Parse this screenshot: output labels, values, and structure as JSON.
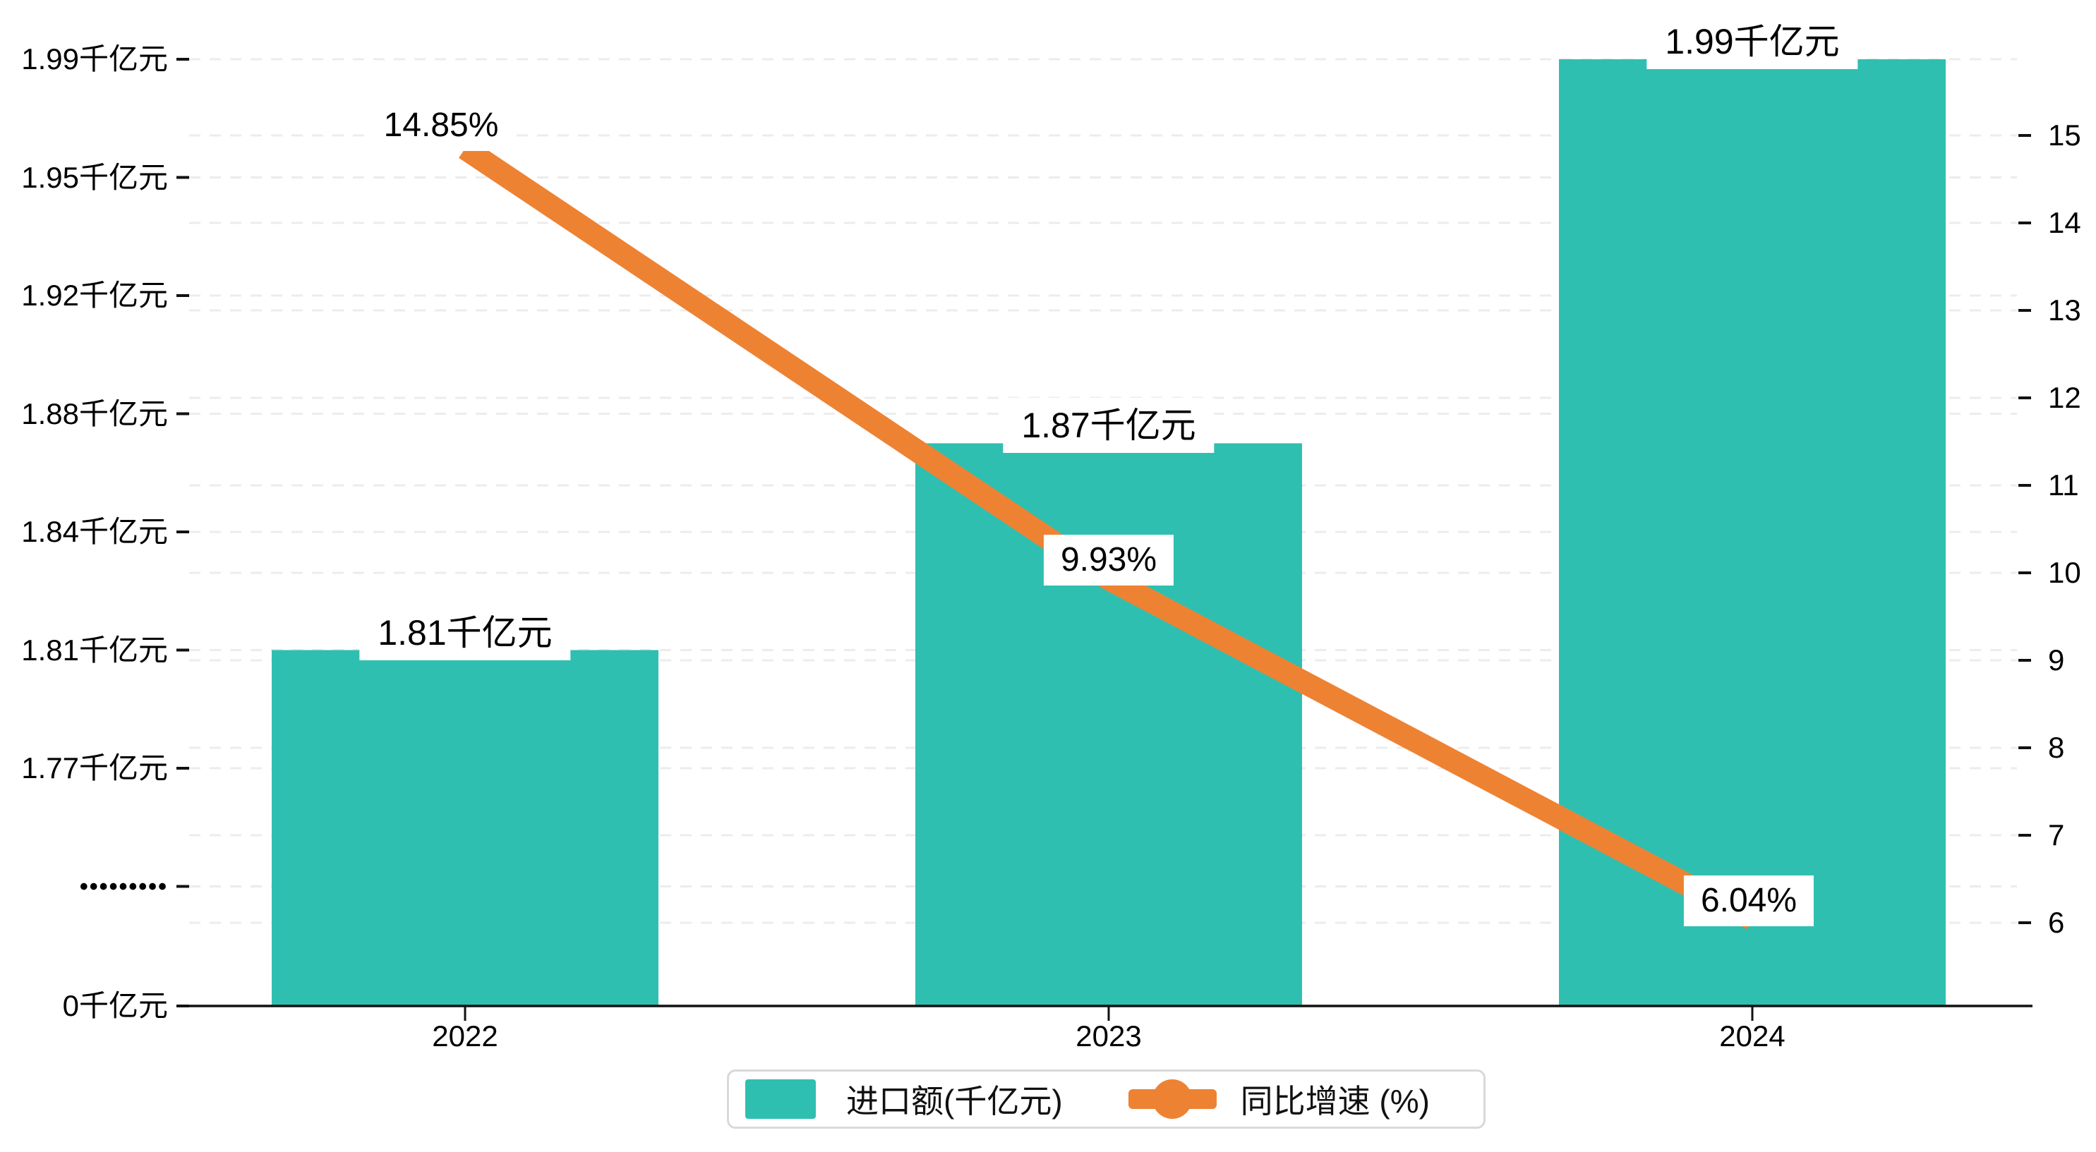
{
  "chart_data": {
    "type": "bar+line",
    "title": "",
    "categories": [
      "2022",
      "2023",
      "2024"
    ],
    "series": [
      {
        "name": "进口额(千亿元)",
        "type": "bar",
        "values": [
          1.81,
          1.87,
          1.99
        ],
        "data_labels": [
          "1.81千亿元",
          "1.87千亿元",
          "1.99千亿元"
        ],
        "color": "#2FBFB1"
      },
      {
        "name": "同比增速 (%)",
        "type": "line",
        "values": [
          14.85,
          9.93,
          6.04
        ],
        "data_labels": [
          "14.85%",
          "9.93%",
          "6.04%"
        ],
        "color": "#EE8233"
      }
    ],
    "left_axis": {
      "tick_labels": [
        "1.99千亿元",
        "1.95千亿元",
        "1.92千亿元",
        "1.88千亿元",
        "1.84千亿元",
        "1.81千亿元",
        "1.77千亿元",
        "•••••••••",
        "0千亿元"
      ],
      "tick_values": [
        1.99,
        1.95,
        1.92,
        1.88,
        1.84,
        1.81,
        1.77,
        null,
        0
      ],
      "axis_break": true
    },
    "right_axis": {
      "tick_labels": [
        "15",
        "14",
        "13",
        "12",
        "11",
        "10",
        "9",
        "8",
        "7",
        "6"
      ],
      "range": [
        6,
        15
      ]
    },
    "legend": {
      "position": "bottom",
      "items": [
        {
          "label": "进口额(千亿元)",
          "marker": "bar",
          "color": "#2FBFB1"
        },
        {
          "label": "同比增速 (%)",
          "marker": "line",
          "color": "#EE8233"
        }
      ]
    },
    "grid": true,
    "colors": {
      "bar": "#2FBFB1",
      "line": "#EE8233",
      "gridline": "#ececec",
      "axis": "#111111",
      "text": "#000000",
      "legend_border": "#d9d9d9",
      "label_background": "#ffffff"
    }
  }
}
